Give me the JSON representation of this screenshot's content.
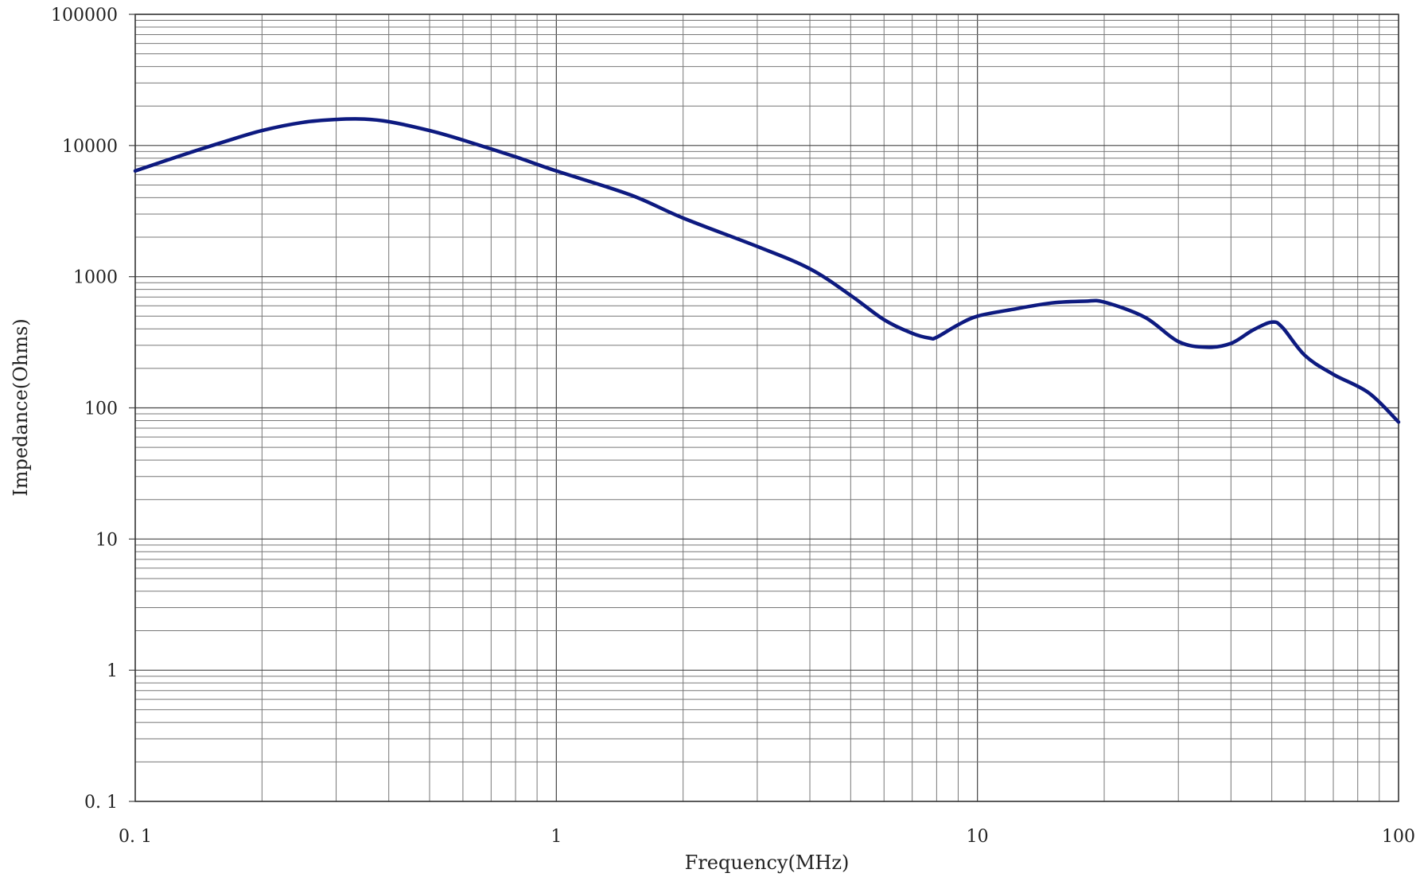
{
  "chart_data": {
    "type": "line",
    "title": "",
    "xlabel": "Frequency(MHz)",
    "ylabel": "Impedance(Ohms)",
    "xscale": "log",
    "yscale": "log",
    "xlim": [
      0.1,
      100
    ],
    "ylim": [
      0.1,
      100000
    ],
    "xticks": [
      "0. 1",
      "1",
      "10",
      "100"
    ],
    "yticks": [
      "0. 1",
      "1",
      "10",
      "100",
      "1000",
      "10000",
      "100000"
    ],
    "grid": true,
    "series": [
      {
        "color": "#0d1a80",
        "points": [
          [
            0.1,
            6400
          ],
          [
            0.13,
            8500
          ],
          [
            0.16,
            10500
          ],
          [
            0.2,
            13000
          ],
          [
            0.25,
            15000
          ],
          [
            0.3,
            15800
          ],
          [
            0.35,
            15900
          ],
          [
            0.4,
            15200
          ],
          [
            0.5,
            13000
          ],
          [
            0.6,
            11000
          ],
          [
            0.8,
            8200
          ],
          [
            1.0,
            6400
          ],
          [
            1.5,
            4200
          ],
          [
            2.0,
            2800
          ],
          [
            3.0,
            1700
          ],
          [
            4.0,
            1150
          ],
          [
            5.0,
            720
          ],
          [
            6.0,
            470
          ],
          [
            7.0,
            370
          ],
          [
            7.7,
            340
          ],
          [
            8.0,
            345
          ],
          [
            9.0,
            430
          ],
          [
            10.0,
            500
          ],
          [
            12.0,
            560
          ],
          [
            15.0,
            630
          ],
          [
            18.0,
            650
          ],
          [
            20.0,
            640
          ],
          [
            25.0,
            490
          ],
          [
            30.0,
            320
          ],
          [
            35.0,
            290
          ],
          [
            40.0,
            310
          ],
          [
            45.0,
            390
          ],
          [
            50.0,
            450
          ],
          [
            53.0,
            410
          ],
          [
            60.0,
            250
          ],
          [
            70.0,
            180
          ],
          [
            85.0,
            130
          ],
          [
            100.0,
            78
          ]
        ]
      }
    ]
  }
}
